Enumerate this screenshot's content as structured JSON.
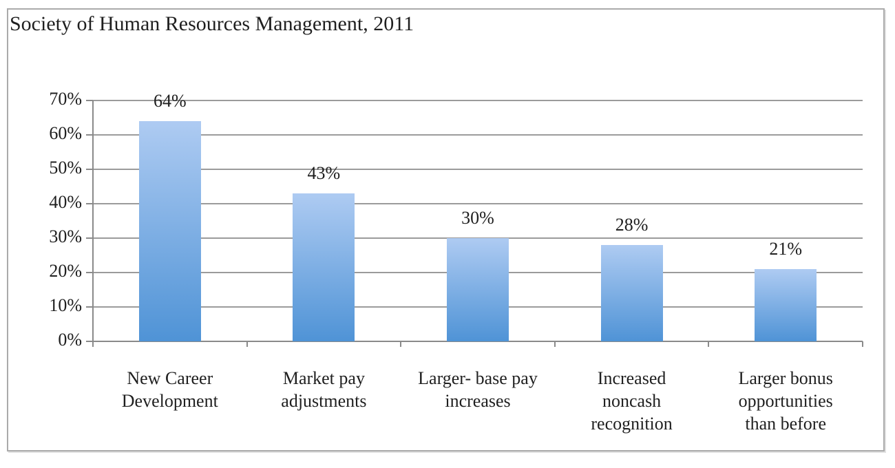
{
  "window": {
    "background": "#ffffff",
    "border_color": "#aaaaaa"
  },
  "chart_data": {
    "type": "bar",
    "title": "Society of Human Resources Management, 2011",
    "categories": [
      "New Career Development",
      "Market pay adjustments",
      "Larger- base pay increases",
      "Increased noncash recognition",
      "Larger bonus opportunities than before"
    ],
    "category_label_lines": [
      "New Career\nDevelopment",
      "Market pay\nadjustments",
      "Larger- base pay\nincreases",
      "Increased\nnoncash\nrecognition",
      "Larger bonus\nopportunities\nthan before"
    ],
    "values": [
      64,
      43,
      30,
      28,
      21
    ],
    "data_labels": [
      "64%",
      "43%",
      "30%",
      "28%",
      "21%"
    ],
    "y_ticks": [
      "0%",
      "10%",
      "20%",
      "30%",
      "40%",
      "50%",
      "60%",
      "70%"
    ],
    "ylim": [
      0,
      70
    ],
    "y_step": 10,
    "grid": true,
    "legend": "none",
    "xlabel": "",
    "ylabel": "",
    "bar_color_top": "#aecbf2",
    "bar_color_bottom": "#4f93d6",
    "gridline_color": "#9b9b9b",
    "axis_color": "#8a8a8a",
    "text_color": "#1f1f1f"
  }
}
